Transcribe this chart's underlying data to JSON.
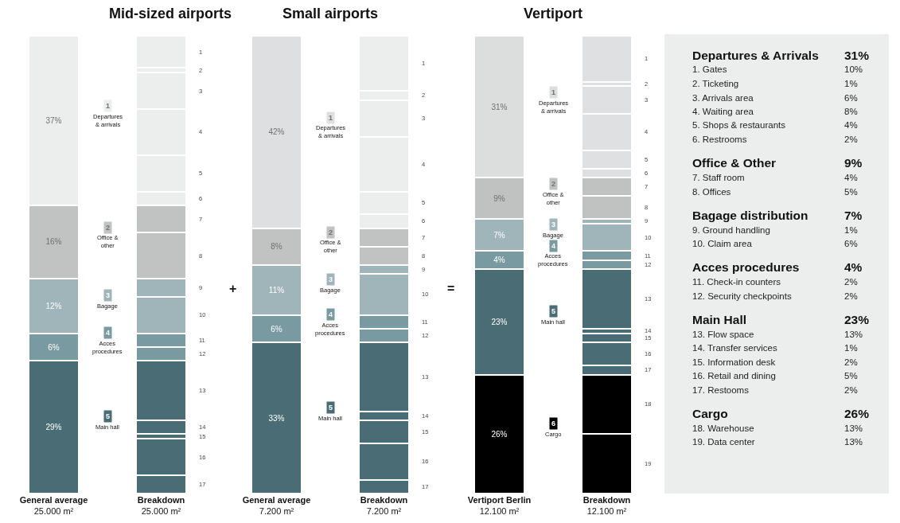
{
  "chart_data": [
    {
      "type": "bar",
      "stacked": true,
      "title": "Mid-sized airports",
      "categories": [
        "General average\n25.000 m²",
        "Breakdown\n25.000 m²"
      ],
      "ylim": [
        0,
        100
      ],
      "tick_labels": "x",
      "legend": "right",
      "series": [
        {
          "name": "Main hall",
          "color": "#4a6d75",
          "values": [
            29,
            null
          ],
          "value_labels": [
            "29%",
            null
          ]
        },
        {
          "name": "Acces procedures",
          "color": "#7a9aa1",
          "values": [
            6,
            null
          ],
          "value_labels": [
            "6%",
            null
          ]
        },
        {
          "name": "Bagage",
          "color": "#9fb5b9",
          "values": [
            12,
            null
          ],
          "value_labels": [
            "12%",
            null
          ]
        },
        {
          "name": "Office & other",
          "color": "#c0c3c2",
          "values": [
            16,
            null
          ],
          "value_labels": [
            "16%",
            null
          ]
        },
        {
          "name": "Departures & arrivals",
          "color": "#eceeed",
          "values": [
            37,
            null
          ],
          "value_labels": [
            "37%",
            null
          ]
        },
        {
          "name": "17",
          "color": "#4a6d75",
          "values": [
            null,
            4
          ]
        },
        {
          "name": "16",
          "color": "#4a6d75",
          "values": [
            null,
            8
          ]
        },
        {
          "name": "15",
          "color": "#4a6d75",
          "values": [
            null,
            1
          ]
        },
        {
          "name": "14",
          "color": "#4a6d75",
          "values": [
            null,
            3
          ]
        },
        {
          "name": "13",
          "color": "#4a6d75",
          "values": [
            null,
            13
          ]
        },
        {
          "name": "12",
          "color": "#7a9aa1",
          "values": [
            null,
            3
          ]
        },
        {
          "name": "11",
          "color": "#7a9aa1",
          "values": [
            null,
            3
          ]
        },
        {
          "name": "10",
          "color": "#9fb5b9",
          "values": [
            null,
            8
          ]
        },
        {
          "name": "9",
          "color": "#9fb5b9",
          "values": [
            null,
            4
          ]
        },
        {
          "name": "8",
          "color": "#c0c3c2",
          "values": [
            null,
            10
          ]
        },
        {
          "name": "7",
          "color": "#c0c3c2",
          "values": [
            null,
            6
          ]
        },
        {
          "name": "6",
          "color": "#eceeed",
          "values": [
            null,
            3
          ]
        },
        {
          "name": "5",
          "color": "#eceeed",
          "values": [
            null,
            8
          ]
        },
        {
          "name": "4",
          "color": "#eceeed",
          "values": [
            null,
            10
          ]
        },
        {
          "name": "3",
          "color": "#eceeed",
          "values": [
            null,
            8
          ]
        },
        {
          "name": "2",
          "color": "#eceeed",
          "values": [
            null,
            1
          ]
        },
        {
          "name": "1",
          "color": "#eceeed",
          "values": [
            null,
            7
          ]
        }
      ]
    },
    {
      "type": "bar",
      "stacked": true,
      "title": "Small airports",
      "categories": [
        "General average\n7.200 m²",
        "Breakdown\n7.200 m²"
      ],
      "ylim": [
        0,
        100
      ],
      "tick_labels": "x",
      "legend": "right",
      "annotations": [
        "+"
      ],
      "series": [
        {
          "name": "Main hall",
          "color": "#4a6d75",
          "values": [
            33,
            null
          ],
          "value_labels": [
            "33%",
            null
          ]
        },
        {
          "name": "Acces procedures",
          "color": "#7a9aa1",
          "values": [
            6,
            null
          ],
          "value_labels": [
            "6%",
            null
          ]
        },
        {
          "name": "Bagage",
          "color": "#9fb5b9",
          "values": [
            11,
            null
          ],
          "value_labels": [
            "11%",
            null
          ]
        },
        {
          "name": "Office & other",
          "color": "#c0c3c2",
          "values": [
            8,
            null
          ],
          "value_labels": [
            "8%",
            null
          ]
        },
        {
          "name": "Departures & arrivals",
          "color": "#dedfe0",
          "values": [
            42,
            null
          ],
          "value_labels": [
            "42%",
            null
          ]
        },
        {
          "name": "17",
          "color": "#4a6d75",
          "values": [
            null,
            3
          ]
        },
        {
          "name": "16",
          "color": "#4a6d75",
          "values": [
            null,
            8
          ]
        },
        {
          "name": "15",
          "color": "#4a6d75",
          "values": [
            null,
            5
          ]
        },
        {
          "name": "14",
          "color": "#4a6d75",
          "values": [
            null,
            2
          ]
        },
        {
          "name": "13",
          "color": "#4a6d75",
          "values": [
            null,
            15
          ]
        },
        {
          "name": "12",
          "color": "#7a9aa1",
          "values": [
            null,
            3
          ]
        },
        {
          "name": "11",
          "color": "#7a9aa1",
          "values": [
            null,
            3
          ]
        },
        {
          "name": "10",
          "color": "#9fb5b9",
          "values": [
            null,
            9
          ]
        },
        {
          "name": "9",
          "color": "#9fb5b9",
          "values": [
            null,
            2
          ]
        },
        {
          "name": "8",
          "color": "#c0c3c2",
          "values": [
            null,
            4
          ]
        },
        {
          "name": "7",
          "color": "#c0c3c2",
          "values": [
            null,
            4
          ]
        },
        {
          "name": "6",
          "color": "#eceeed",
          "values": [
            null,
            3
          ]
        },
        {
          "name": "5",
          "color": "#eceeed",
          "values": [
            null,
            5
          ]
        },
        {
          "name": "4",
          "color": "#eceeed",
          "values": [
            null,
            12
          ]
        },
        {
          "name": "3",
          "color": "#eceeed",
          "values": [
            null,
            8
          ]
        },
        {
          "name": "2",
          "color": "#eceeed",
          "values": [
            null,
            2
          ]
        },
        {
          "name": "1",
          "color": "#eceeed",
          "values": [
            null,
            12
          ]
        }
      ]
    },
    {
      "type": "bar",
      "stacked": true,
      "title": "Vertiport",
      "categories": [
        "Vertiport Berlin\n12.100 m²",
        "Breakdown\n12.100 m²"
      ],
      "ylim": [
        0,
        100
      ],
      "tick_labels": "x",
      "legend": "right",
      "annotations": [
        "="
      ],
      "series": [
        {
          "name": "Cargo",
          "color": "#000000",
          "values": [
            26,
            null
          ],
          "value_labels": [
            "26%",
            null
          ]
        },
        {
          "name": "Main hall",
          "color": "#4a6d75",
          "values": [
            23,
            null
          ],
          "value_labels": [
            "23%",
            null
          ]
        },
        {
          "name": "Acces procedures",
          "color": "#7a9aa1",
          "values": [
            4,
            null
          ],
          "value_labels": [
            "4%",
            null
          ]
        },
        {
          "name": "Bagage",
          "color": "#9fb5b9",
          "values": [
            7,
            null
          ],
          "value_labels": [
            "7%",
            null
          ]
        },
        {
          "name": "Office & other",
          "color": "#bfc2c1",
          "values": [
            9,
            null
          ],
          "value_labels": [
            "9%",
            null
          ]
        },
        {
          "name": "Departures & arrivals",
          "color": "#dcdddd",
          "values": [
            31,
            null
          ],
          "value_labels": [
            "31%",
            null
          ]
        },
        {
          "name": "19",
          "color": "#000000",
          "values": [
            null,
            13
          ]
        },
        {
          "name": "18",
          "color": "#000000",
          "values": [
            null,
            13
          ]
        },
        {
          "name": "17",
          "color": "#4a6d75",
          "values": [
            null,
            2
          ]
        },
        {
          "name": "16",
          "color": "#4a6d75",
          "values": [
            null,
            5
          ]
        },
        {
          "name": "15",
          "color": "#4a6d75",
          "values": [
            null,
            2
          ]
        },
        {
          "name": "14",
          "color": "#4a6d75",
          "values": [
            null,
            1
          ]
        },
        {
          "name": "13",
          "color": "#4a6d75",
          "values": [
            null,
            13
          ]
        },
        {
          "name": "12",
          "color": "#7a9aa1",
          "values": [
            null,
            2
          ]
        },
        {
          "name": "11",
          "color": "#7a9aa1",
          "values": [
            null,
            2
          ]
        },
        {
          "name": "10",
          "color": "#9fb5b9",
          "values": [
            null,
            6
          ]
        },
        {
          "name": "9",
          "color": "#9fb5b9",
          "values": [
            null,
            1
          ]
        },
        {
          "name": "8",
          "color": "#bfc2c1",
          "values": [
            null,
            5
          ]
        },
        {
          "name": "7",
          "color": "#bfc2c1",
          "values": [
            null,
            4
          ]
        },
        {
          "name": "6",
          "color": "#dfe0e1",
          "values": [
            null,
            2
          ]
        },
        {
          "name": "5",
          "color": "#dfe0e1",
          "values": [
            null,
            4
          ]
        },
        {
          "name": "4",
          "color": "#dfe0e1",
          "values": [
            null,
            8
          ]
        },
        {
          "name": "3",
          "color": "#dfe0e1",
          "values": [
            null,
            6
          ]
        },
        {
          "name": "2",
          "color": "#dfe0e1",
          "values": [
            null,
            1
          ]
        },
        {
          "name": "1",
          "color": "#dfe0e1",
          "values": [
            null,
            10
          ]
        }
      ]
    },
    {
      "type": "other",
      "categories": [
        "1. Gates",
        "2. Ticketing",
        "3. Arrivals area",
        "4. Waiting area",
        "5. Shops & restaurants",
        "6. Restrooms",
        "7. Staff room",
        "8. Offices",
        "9. Ground handling",
        "10. Claim area",
        "11. Check-in counters",
        "12. Security checkpoints",
        "13. Flow space",
        "14. Transfer services",
        "15. Information desk",
        "16. Retail and dining",
        "17. Restooms",
        "18. Warehouse",
        "19. Data center"
      ],
      "values": [
        10,
        1,
        6,
        8,
        4,
        2,
        4,
        5,
        1,
        6,
        2,
        2,
        13,
        1,
        2,
        5,
        2,
        13,
        13
      ],
      "value_labels": [
        "10%",
        "1%",
        "6%",
        "8%",
        "4%",
        "2%",
        "4%",
        "5%",
        "1%",
        "6%",
        "2%",
        "2%",
        "13%",
        "1%",
        "2%",
        "5%",
        "2%",
        "13%",
        "13%"
      ],
      "totals": [
        "31%",
        "9%",
        "7%",
        "4%",
        "23%",
        "26%"
      ],
      "annotations": [
        "Departures & Arrivals",
        "Office & Other",
        "Bagage distribution",
        "Acces procedures",
        "Main Hall",
        "Cargo"
      ]
    }
  ]
}
